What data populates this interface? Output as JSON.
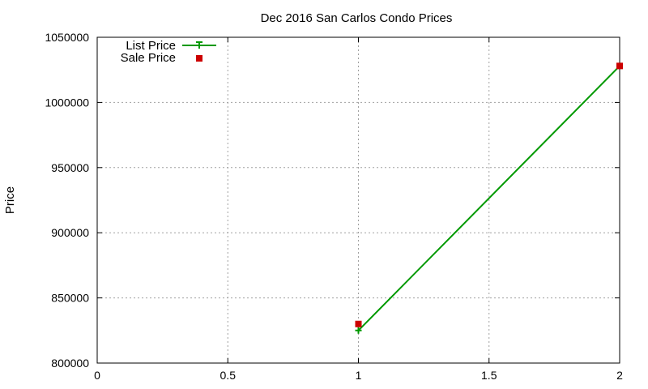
{
  "chart_data": {
    "type": "line",
    "title": "Dec 2016 San Carlos Condo Prices",
    "xlabel": "",
    "ylabel": "Price",
    "xlim": [
      0,
      2
    ],
    "ylim": [
      800000,
      1050000
    ],
    "x_ticks": [
      "0",
      "0.5",
      "1",
      "1.5",
      "2"
    ],
    "y_ticks": [
      "800000",
      "850000",
      "900000",
      "950000",
      "1000000",
      "1050000"
    ],
    "grid": true,
    "legend_position": "top-left",
    "series": [
      {
        "name": "List Price",
        "style": "line+cross",
        "color": "#009900",
        "points": [
          {
            "x": 1,
            "y": 825000
          },
          {
            "x": 2,
            "y": 1028000
          }
        ]
      },
      {
        "name": "Sale Price",
        "style": "square",
        "color": "#cc0000",
        "points": [
          {
            "x": 1,
            "y": 830000
          },
          {
            "x": 2,
            "y": 1028000
          }
        ]
      }
    ]
  }
}
